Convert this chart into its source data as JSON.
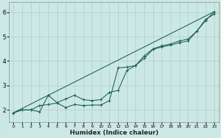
{
  "title": "",
  "xlabel": "Humidex (Indice chaleur)",
  "ylabel": "",
  "bg_color": "#cce8e4",
  "grid_color": "#aaccc8",
  "line_color": "#1a5f58",
  "xlim": [
    -0.5,
    23.5
  ],
  "ylim": [
    1.5,
    6.4
  ],
  "xticks": [
    0,
    1,
    2,
    3,
    4,
    5,
    6,
    7,
    8,
    9,
    10,
    11,
    12,
    13,
    14,
    15,
    16,
    17,
    18,
    19,
    20,
    21,
    22,
    23
  ],
  "yticks": [
    2,
    3,
    4,
    5,
    6
  ],
  "series1_x": [
    0,
    1,
    2,
    3,
    4,
    5,
    6,
    7,
    8,
    9,
    10,
    11,
    12,
    13,
    14,
    15,
    16,
    17,
    18,
    19,
    20,
    21,
    22,
    23
  ],
  "series1_y": [
    1.88,
    2.0,
    2.0,
    1.92,
    2.6,
    2.3,
    2.45,
    2.6,
    2.42,
    2.38,
    2.42,
    2.72,
    2.8,
    3.62,
    3.82,
    4.22,
    4.5,
    4.62,
    4.7,
    4.82,
    4.9,
    5.22,
    5.7,
    5.92
  ],
  "series2_x": [
    0,
    1,
    2,
    3,
    4,
    5,
    6,
    7,
    8,
    9,
    10,
    11,
    12,
    13,
    14,
    15,
    16,
    17,
    18,
    19,
    20,
    21,
    22,
    23
  ],
  "series2_y": [
    1.88,
    2.0,
    2.0,
    2.18,
    2.22,
    2.28,
    2.1,
    2.22,
    2.18,
    2.2,
    2.2,
    2.38,
    3.72,
    3.75,
    3.82,
    4.12,
    4.48,
    4.58,
    4.65,
    4.75,
    4.82,
    5.22,
    5.65,
    6.02
  ],
  "series3_x": [
    0,
    23
  ],
  "series3_y": [
    1.88,
    6.02
  ]
}
